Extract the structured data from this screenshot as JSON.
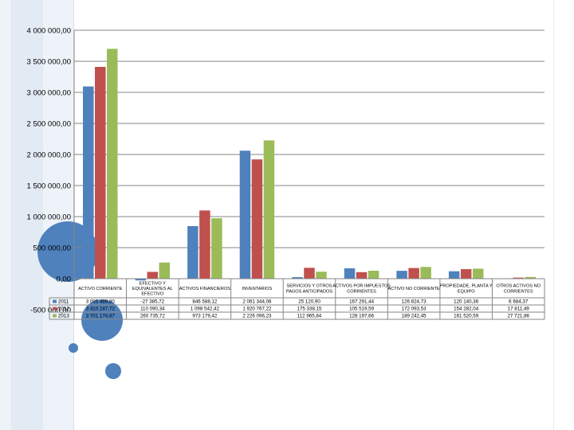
{
  "colors": {
    "series_2011": "#4f81bd",
    "series_2012": "#c0504d",
    "series_2013": "#9bbb59",
    "decor_circle": "#4f81bd",
    "decor_band": "#e6edf6"
  },
  "chart_data": {
    "type": "bar",
    "title": "",
    "xlabel": "",
    "ylabel": "",
    "ylim": [
      -500000,
      4000000
    ],
    "yticks": [
      "-500 000,00",
      "0,00",
      "500 000,00",
      "1 000 000,00",
      "1 500 000,00",
      "2 000 000,00",
      "2 500 000,00",
      "3 000 000,00",
      "3 500 000,00",
      "4 000 000,00"
    ],
    "grid": true,
    "categories": [
      "ACTIVO CORRIENTE",
      "EFECTIVO Y EQUIVALENTES AL EFECTIVO",
      "ACTIVOS FINANCIEROS",
      "INVENTARIOS",
      "SERVICIOS Y OTROS PAGOS ANTICIPADOS",
      "ACTIVOS POR IMPUESTOS CORRIENTES",
      "ACTIVO NO CORRIENTE",
      "PROPIEDADE, PLANTA Y EQUIPO",
      "OTROS ACTIVOS NO CORRIENTES"
    ],
    "series": [
      {
        "name": "2011",
        "values": [
          3095488.8,
          -27385.72,
          846588.12,
          2061344.06,
          25120.9,
          167291.44,
          126824.73,
          120140.36,
          6684.37
        ],
        "labels": [
          "3 095 488,80",
          "-27 385,72",
          "846 588,12",
          "2 061 344,06",
          "25 120,90",
          "167 291,44",
          "126 824,73",
          "120 140,36",
          "6 684,37"
        ]
      },
      {
        "name": "2012",
        "values": [
          3410247.72,
          110090.34,
          1098542.42,
          1920767.22,
          175338.15,
          105519.59,
          172093.53,
          154282.04,
          17811.49
        ],
        "labels": [
          "3 410 247,72",
          "110 090,34",
          "1 098 542,42",
          "1 920 767,22",
          "175 338,15",
          "105 519,59",
          "172 093,53",
          "154 282,04",
          "17 811,49"
        ]
      },
      {
        "name": "2013",
        "values": [
          3701174.87,
          260735.72,
          973179.42,
          2226096.23,
          112965.84,
          128197.66,
          189242.45,
          161520.59,
          27721.86
        ],
        "labels": [
          "3 701 174,87",
          "260 735,72",
          "973 179,42",
          "2 226 096,23",
          "112 965,84",
          "128 197,66",
          "189 242,45",
          "161 520,59",
          "27 721,86"
        ]
      }
    ]
  }
}
